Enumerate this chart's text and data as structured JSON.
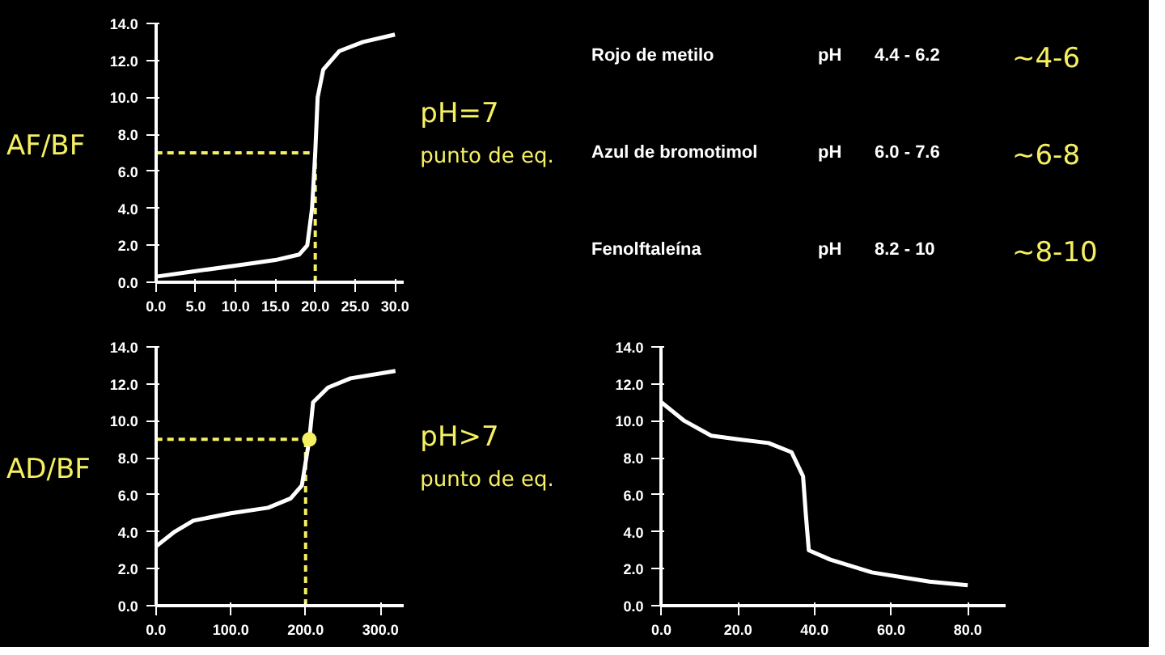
{
  "chart_data": [
    {
      "type": "line",
      "annotations": [
        "AF/BF",
        "pH=7",
        "punto de eq."
      ],
      "x": [
        0,
        5,
        10,
        15,
        18,
        19,
        19.6,
        20,
        20.3,
        21,
        23,
        26,
        30
      ],
      "series": [
        {
          "color": "#ffffff",
          "values": [
            0.3,
            0.6,
            0.9,
            1.2,
            1.5,
            2,
            4,
            7,
            10,
            11.5,
            12.5,
            13,
            13.4
          ]
        }
      ],
      "xlim": [
        0,
        31
      ],
      "ylim": [
        0,
        14
      ],
      "xticks": [
        {
          "value": 0,
          "label": "0.0"
        },
        {
          "value": 5,
          "label": "5.0"
        },
        {
          "value": 10,
          "label": "10.0"
        },
        {
          "value": 15,
          "label": "15.0"
        },
        {
          "value": 20,
          "label": "20.0"
        },
        {
          "value": 25,
          "label": "25.0"
        },
        {
          "value": 30,
          "label": "30.0"
        }
      ],
      "yticks": [
        {
          "value": 0,
          "label": "0.0"
        },
        {
          "value": 2,
          "label": "2.0"
        },
        {
          "value": 4,
          "label": "4.0"
        },
        {
          "value": 6,
          "label": "6.0"
        },
        {
          "value": 8,
          "label": "8.0"
        },
        {
          "value": 10,
          "label": "10.0"
        },
        {
          "value": 12,
          "label": "12.0"
        },
        {
          "value": 14,
          "label": "14.0"
        }
      ],
      "ref_lines": [
        {
          "axis": "y",
          "value": 7,
          "color": "#f5f062",
          "line_style": "dashed"
        },
        {
          "axis": "x",
          "value": 20,
          "color": "#f5f062",
          "line_style": "dashed"
        }
      ],
      "grid": false
    },
    {
      "type": "other",
      "annotations": [
        "Rojo de metilo",
        "pH",
        "4.4 - 6.2",
        "~4-6",
        "Azul de bromotimol",
        "pH",
        "6.0 - 7.6",
        "~6-8",
        "Fenolftaleína",
        "pH",
        "8.2 - 10",
        "~8-10"
      ]
    },
    {
      "type": "line",
      "annotations": [
        "AD/BF",
        "pH>7",
        "punto de eq."
      ],
      "x": [
        0,
        25,
        50,
        100,
        150,
        180,
        195,
        205,
        210,
        230,
        260,
        320
      ],
      "series": [
        {
          "color": "#ffffff",
          "values": [
            3.2,
            4,
            4.6,
            5,
            5.3,
            5.8,
            6.5,
            9,
            11,
            11.8,
            12.3,
            12.7
          ]
        },
        {
          "type": "scatter",
          "color": "#f5f062",
          "x": [
            205
          ],
          "values": [
            9
          ]
        }
      ],
      "xlim": [
        0,
        330
      ],
      "ylim": [
        0,
        14
      ],
      "xticks": [
        {
          "value": 0,
          "label": "0.0"
        },
        {
          "value": 100,
          "label": "100.0"
        },
        {
          "value": 200,
          "label": "200.0"
        },
        {
          "value": 300,
          "label": "300.0"
        }
      ],
      "yticks": [
        {
          "value": 0,
          "label": "0.0"
        },
        {
          "value": 2,
          "label": "2.0"
        },
        {
          "value": 4,
          "label": "4.0"
        },
        {
          "value": 6,
          "label": "6.0"
        },
        {
          "value": 8,
          "label": "8.0"
        },
        {
          "value": 10,
          "label": "10.0"
        },
        {
          "value": 12,
          "label": "12.0"
        },
        {
          "value": 14,
          "label": "14.0"
        }
      ],
      "ref_lines": [
        {
          "axis": "y",
          "value": 9,
          "color": "#f5f062",
          "line_style": "dashed"
        },
        {
          "axis": "x",
          "value": 200,
          "color": "#f5f062",
          "line_style": "dashed"
        }
      ],
      "grid": false
    },
    {
      "type": "line",
      "x": [
        0,
        6,
        13,
        20,
        28,
        34,
        37,
        37.7,
        38.5,
        44,
        55,
        70,
        80
      ],
      "series": [
        {
          "color": "#ffffff",
          "values": [
            11,
            10,
            9.2,
            9,
            8.8,
            8.3,
            7,
            5,
            3,
            2.5,
            1.8,
            1.3,
            1.1
          ]
        }
      ],
      "xlim": [
        0,
        90
      ],
      "ylim": [
        0,
        14
      ],
      "xticks": [
        {
          "value": 0,
          "label": "0.0"
        },
        {
          "value": 20,
          "label": "20.0"
        },
        {
          "value": 40,
          "label": "40.0"
        },
        {
          "value": 60,
          "label": "60.0"
        },
        {
          "value": 80,
          "label": "80.0"
        }
      ],
      "yticks": [
        {
          "value": 0,
          "label": "0.0"
        },
        {
          "value": 2,
          "label": "2.0"
        },
        {
          "value": 4,
          "label": "4.0"
        },
        {
          "value": 6,
          "label": "6.0"
        },
        {
          "value": 8,
          "label": "8.0"
        },
        {
          "value": 10,
          "label": "10.0"
        },
        {
          "value": 12,
          "label": "12.0"
        },
        {
          "value": 14,
          "label": "14.0"
        }
      ],
      "grid": false
    }
  ]
}
